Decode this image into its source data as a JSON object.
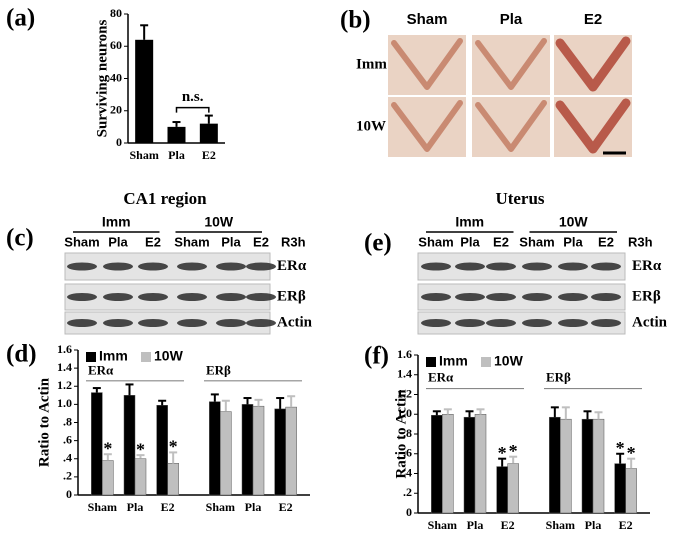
{
  "panel_labels": {
    "a": "(a)",
    "b": "(b)",
    "c": "(c)",
    "d": "(d)",
    "e": "(e)",
    "f": "(f)"
  },
  "photos": {
    "columns": [
      "Sham",
      "Pla",
      "E2"
    ],
    "rows": [
      "Imm",
      "10W"
    ]
  },
  "blots": [
    {
      "title": "CA1 region",
      "groups": [
        "Imm",
        "10W"
      ],
      "lanes": [
        "Sham",
        "Pla",
        "E2",
        "Sham",
        "Pla",
        "E2"
      ],
      "timepoint": "R3h",
      "proteins": [
        "ERα",
        "ERβ",
        "Actin"
      ]
    },
    {
      "title": "Uterus",
      "groups": [
        "Imm",
        "10W"
      ],
      "lanes": [
        "Sham",
        "Pla",
        "E2",
        "Sham",
        "Pla",
        "E2"
      ],
      "timepoint": "R3h",
      "proteins": [
        "ERα",
        "ERβ",
        "Actin"
      ]
    }
  ],
  "chart_data": [
    {
      "type": "bar",
      "ylabel": "Surviving neurons",
      "categories": [
        "Sham",
        "Pla",
        "E2"
      ],
      "values": [
        64,
        10,
        12
      ],
      "errors": [
        9,
        3,
        5
      ],
      "color": "#000000",
      "ylim": [
        0,
        80
      ],
      "yticks": [
        0,
        20,
        40,
        60,
        80
      ],
      "annotation": "n.s."
    },
    {
      "type": "grouped_bar",
      "ylabel": "Ratio to Actin",
      "groups": [
        "ERα",
        "ERβ"
      ],
      "categories": [
        "Sham",
        "Pla",
        "E2",
        "Sham",
        "Pla",
        "E2"
      ],
      "series": [
        {
          "name": "Imm",
          "color": "#000000",
          "values": [
            1.13,
            1.1,
            0.99,
            1.03,
            1.0,
            0.95
          ],
          "errors": [
            0.05,
            0.12,
            0.05,
            0.08,
            0.07,
            0.12
          ],
          "significance": [
            null,
            null,
            null,
            null,
            null,
            null
          ]
        },
        {
          "name": "10W",
          "color": "#bfbfbf",
          "values": [
            0.38,
            0.4,
            0.35,
            0.92,
            0.98,
            0.97
          ],
          "errors": [
            0.07,
            0.04,
            0.12,
            0.12,
            0.07,
            0.12
          ],
          "significance": [
            "*",
            "*",
            "*",
            null,
            null,
            null
          ]
        }
      ],
      "ylim": [
        0,
        1.6
      ],
      "yticks": [
        0,
        {
          "value": 0.2,
          "label": ".2"
        },
        {
          "value": 0.4,
          "label": ".4"
        },
        {
          "value": 0.6,
          "label": ".6"
        },
        {
          "value": 0.8,
          "label": ".8"
        },
        {
          "value": 1,
          "label": "1.0"
        },
        1.2,
        1.4,
        1.6
      ]
    },
    {
      "type": "grouped_bar",
      "ylabel": "Ratio to Actin",
      "groups": [
        "ERα",
        "ERβ"
      ],
      "categories": [
        "Sham",
        "Pla",
        "E2",
        "Sham",
        "Pla",
        "E2"
      ],
      "series": [
        {
          "name": "Imm",
          "color": "#000000",
          "values": [
            0.99,
            0.97,
            0.47,
            0.97,
            0.95,
            0.5
          ],
          "errors": [
            0.04,
            0.06,
            0.08,
            0.1,
            0.08,
            0.1
          ],
          "significance": [
            null,
            null,
            "*",
            null,
            null,
            "*"
          ]
        },
        {
          "name": "10W",
          "color": "#bfbfbf",
          "values": [
            1.0,
            1.0,
            0.5,
            0.95,
            0.95,
            0.45
          ],
          "errors": [
            0.05,
            0.05,
            0.07,
            0.12,
            0.07,
            0.1
          ],
          "significance": [
            null,
            null,
            "*",
            null,
            null,
            "*"
          ]
        }
      ],
      "ylim": [
        0,
        1.6
      ],
      "yticks": [
        0,
        {
          "value": 0.2,
          "label": ".2"
        },
        {
          "value": 0.4,
          "label": ".4"
        },
        {
          "value": 0.6,
          "label": ".6"
        },
        {
          "value": 0.8,
          "label": ".8"
        },
        {
          "value": 1,
          "label": "1.0"
        },
        1.2,
        1.4,
        1.6
      ]
    }
  ]
}
